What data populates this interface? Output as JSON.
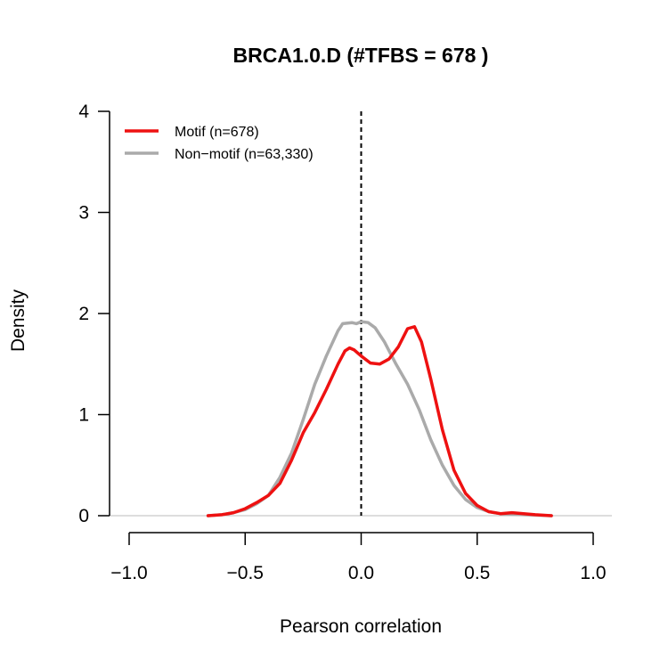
{
  "chart_data": {
    "type": "line",
    "title": "BRCA1.0.D (#TFBS = 678 )",
    "xlabel": "Pearson correlation",
    "ylabel": "Density",
    "xlim": [
      -1.0,
      1.0
    ],
    "ylim": [
      0,
      4
    ],
    "x_ticks": [
      "-1.0",
      "-0.5",
      "0.0",
      "0.5",
      "1.0"
    ],
    "y_ticks": [
      "0",
      "1",
      "2",
      "3",
      "4"
    ],
    "reference_line": {
      "x": 0.0,
      "style": "dashed"
    },
    "legend_position": "top-left",
    "series": [
      {
        "name": "Motif (n=678)",
        "color": "#ee1111",
        "points": [
          [
            -0.66,
            0.0
          ],
          [
            -0.6,
            0.01
          ],
          [
            -0.55,
            0.03
          ],
          [
            -0.5,
            0.07
          ],
          [
            -0.45,
            0.13
          ],
          [
            -0.4,
            0.2
          ],
          [
            -0.35,
            0.32
          ],
          [
            -0.3,
            0.55
          ],
          [
            -0.25,
            0.82
          ],
          [
            -0.2,
            1.02
          ],
          [
            -0.15,
            1.25
          ],
          [
            -0.1,
            1.5
          ],
          [
            -0.07,
            1.63
          ],
          [
            -0.05,
            1.66
          ],
          [
            -0.03,
            1.64
          ],
          [
            0.0,
            1.58
          ],
          [
            0.04,
            1.51
          ],
          [
            0.08,
            1.5
          ],
          [
            0.12,
            1.55
          ],
          [
            0.16,
            1.67
          ],
          [
            0.2,
            1.85
          ],
          [
            0.23,
            1.87
          ],
          [
            0.26,
            1.72
          ],
          [
            0.3,
            1.35
          ],
          [
            0.35,
            0.85
          ],
          [
            0.4,
            0.45
          ],
          [
            0.45,
            0.22
          ],
          [
            0.5,
            0.1
          ],
          [
            0.55,
            0.04
          ],
          [
            0.6,
            0.02
          ],
          [
            0.65,
            0.03
          ],
          [
            0.7,
            0.02
          ],
          [
            0.75,
            0.01
          ],
          [
            0.82,
            0.0
          ]
        ]
      },
      {
        "name": "Non−motif (n=63,330)",
        "color": "#aaaaaa",
        "points": [
          [
            -0.66,
            0.0
          ],
          [
            -0.6,
            0.01
          ],
          [
            -0.55,
            0.03
          ],
          [
            -0.5,
            0.06
          ],
          [
            -0.45,
            0.12
          ],
          [
            -0.4,
            0.2
          ],
          [
            -0.35,
            0.38
          ],
          [
            -0.3,
            0.62
          ],
          [
            -0.25,
            0.95
          ],
          [
            -0.2,
            1.3
          ],
          [
            -0.15,
            1.58
          ],
          [
            -0.1,
            1.83
          ],
          [
            -0.08,
            1.9
          ],
          [
            -0.04,
            1.91
          ],
          [
            -0.02,
            1.9
          ],
          [
            0.0,
            1.92
          ],
          [
            0.03,
            1.91
          ],
          [
            0.06,
            1.86
          ],
          [
            0.1,
            1.72
          ],
          [
            0.15,
            1.5
          ],
          [
            0.2,
            1.3
          ],
          [
            0.25,
            1.05
          ],
          [
            0.3,
            0.75
          ],
          [
            0.35,
            0.5
          ],
          [
            0.4,
            0.3
          ],
          [
            0.45,
            0.16
          ],
          [
            0.5,
            0.08
          ],
          [
            0.55,
            0.04
          ],
          [
            0.6,
            0.02
          ],
          [
            0.7,
            0.01
          ],
          [
            0.82,
            0.0
          ]
        ]
      }
    ]
  }
}
